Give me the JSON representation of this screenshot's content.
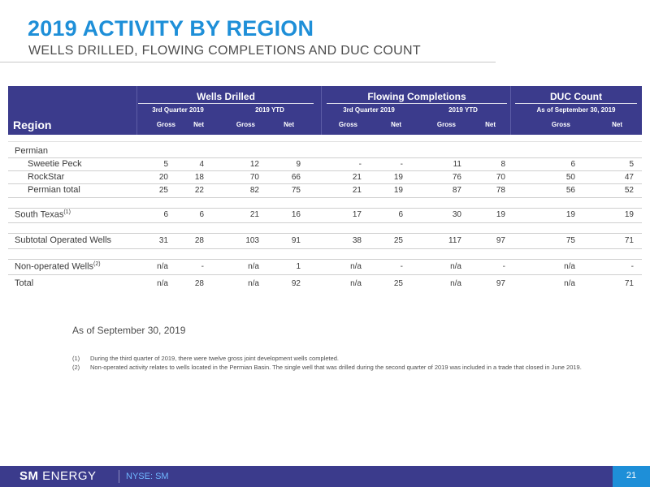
{
  "title": "2019 ACTIVITY BY REGION",
  "subtitle": "WELLS DRILLED, FLOWING COMPLETIONS AND DUC COUNT",
  "table": {
    "groups": [
      "Wells Drilled",
      "Flowing Completions",
      "DUC Count"
    ],
    "subgroups": [
      "3rd Quarter 2019",
      "2019 YTD",
      "3rd Quarter 2019",
      "2019 YTD",
      "As of September 30, 2019"
    ],
    "region_header": "Region",
    "col_labels": [
      "Gross",
      "Net",
      "Gross",
      "Net",
      "Gross",
      "Net",
      "Gross",
      "Net",
      "Gross",
      "Net"
    ],
    "rows": [
      {
        "label": "Permian",
        "values": []
      },
      {
        "label": "Sweetie Peck",
        "values": [
          "5",
          "4",
          "12",
          "9",
          "-",
          "-",
          "11",
          "8",
          "6",
          "5"
        ]
      },
      {
        "label": "RockStar",
        "values": [
          "20",
          "18",
          "70",
          "66",
          "21",
          "19",
          "76",
          "70",
          "50",
          "47"
        ]
      },
      {
        "label": "Permian total",
        "values": [
          "25",
          "22",
          "82",
          "75",
          "21",
          "19",
          "87",
          "78",
          "56",
          "52"
        ]
      },
      {
        "label": "South Texas",
        "sup": "(1)",
        "values": [
          "6",
          "6",
          "21",
          "16",
          "17",
          "6",
          "30",
          "19",
          "19",
          "19"
        ]
      },
      {
        "label": "Subtotal Operated Wells",
        "values": [
          "31",
          "28",
          "103",
          "91",
          "38",
          "25",
          "117",
          "97",
          "75",
          "71"
        ]
      },
      {
        "label": "Non-operated Wells",
        "sup": "(2)",
        "values": [
          "n/a",
          "-",
          "n/a",
          "1",
          "n/a",
          "-",
          "n/a",
          "-",
          "n/a",
          "-"
        ]
      },
      {
        "label": "Total",
        "values": [
          "n/a",
          "28",
          "n/a",
          "92",
          "n/a",
          "25",
          "n/a",
          "97",
          "n/a",
          "71"
        ]
      }
    ]
  },
  "as_of": "As of September 30, 2019",
  "footnotes": [
    {
      "num": "(1)",
      "text": "During the third quarter of 2019, there were twelve gross joint development wells completed."
    },
    {
      "num": "(2)",
      "text": "Non-operated activity relates to wells located in the Permian Basin. The single well that was drilled during the second quarter of 2019 was included in a trade that closed in June 2019."
    }
  ],
  "footer": {
    "logo_bold": "SM",
    "logo_rest": "ENERGY",
    "ticker": "NYSE: SM",
    "page": "21"
  },
  "colors": {
    "title": "#1e8fd8",
    "header_band": "#3b3b8c",
    "page_box": "#1e8fd8"
  }
}
